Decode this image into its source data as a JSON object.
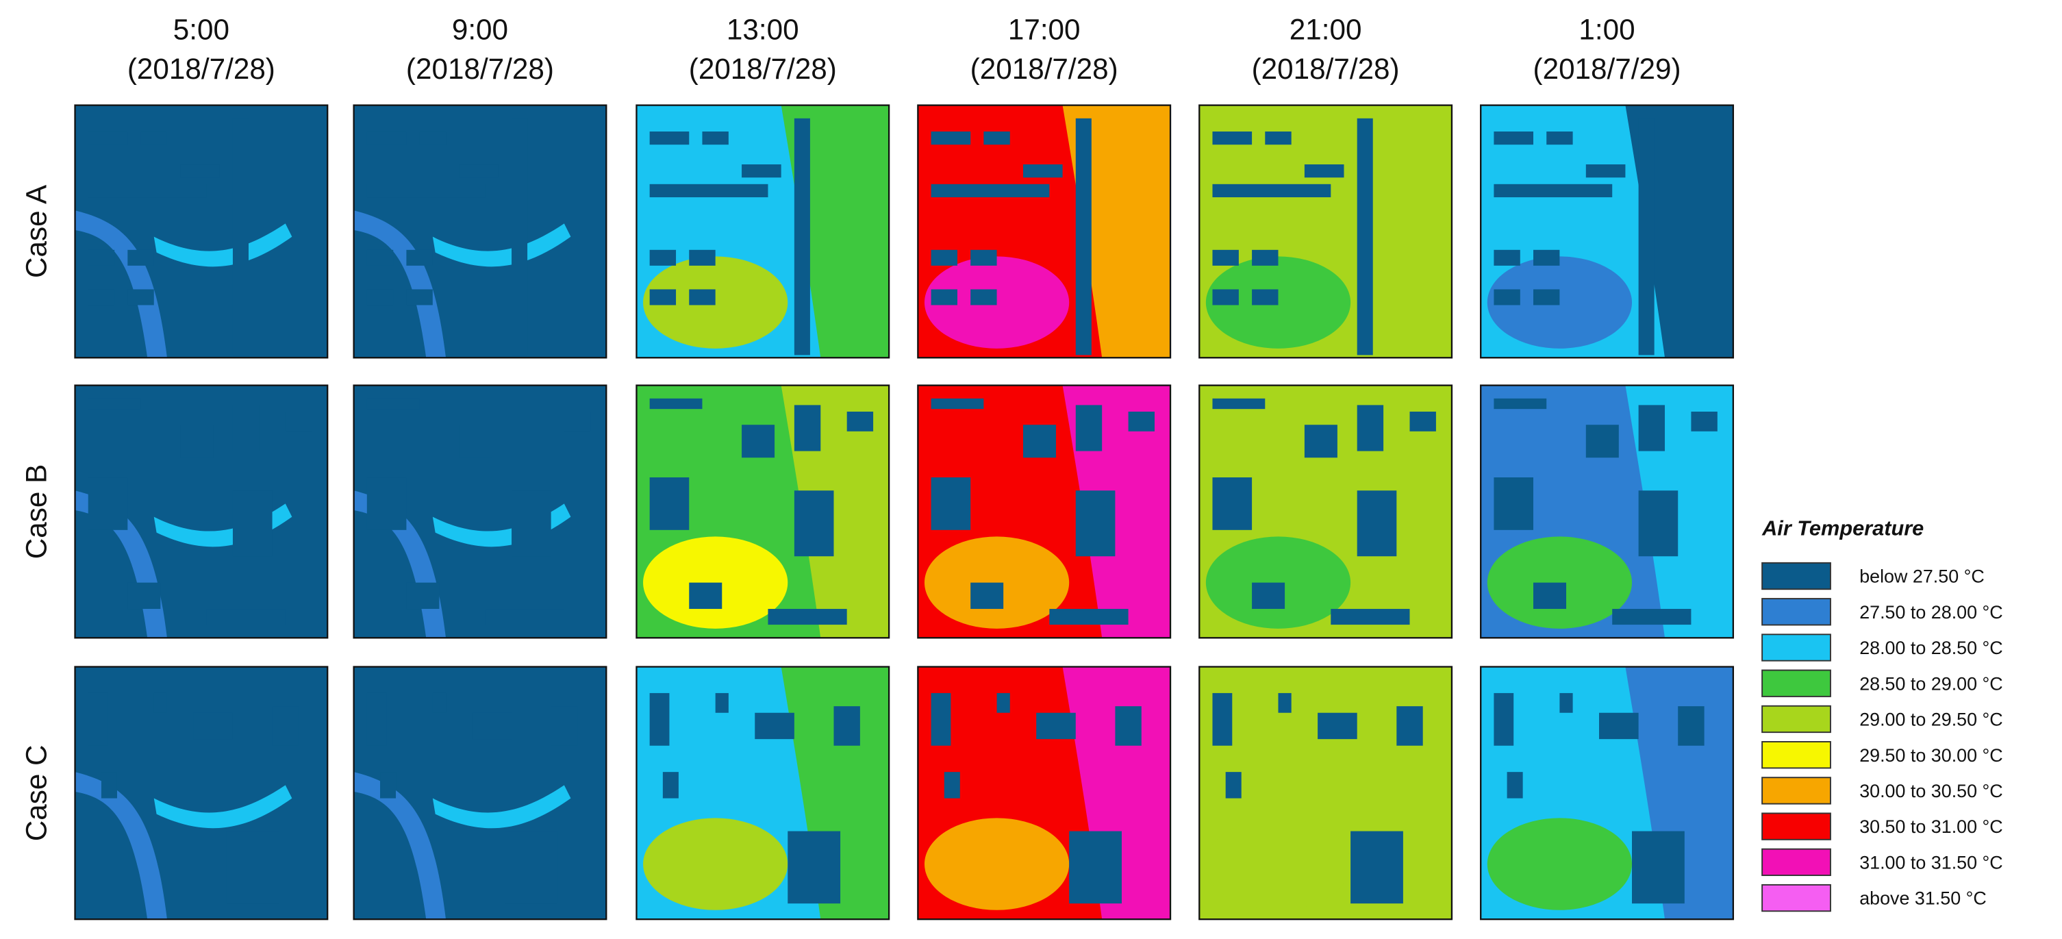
{
  "columns": [
    {
      "time": "5:00",
      "date": "(2018/7/28)"
    },
    {
      "time": "9:00",
      "date": "(2018/7/28)"
    },
    {
      "time": "13:00",
      "date": "(2018/7/28)"
    },
    {
      "time": "17:00",
      "date": "(2018/7/28)"
    },
    {
      "time": "21:00",
      "date": "(2018/7/28)"
    },
    {
      "time": "1:00",
      "date": "(2018/7/29)"
    }
  ],
  "rows": [
    "Case A",
    "Case B",
    "Case C"
  ],
  "legend": {
    "title": "Air Temperature",
    "items": [
      {
        "label": "below 27.50 °C",
        "color": "#0b5b8b"
      },
      {
        "label": "27.50 to 28.00 °C",
        "color": "#2e7fd2"
      },
      {
        "label": "28.00 to 28.50 °C",
        "color": "#1ac4f2"
      },
      {
        "label": "28.50 to 29.00 °C",
        "color": "#3ec83e"
      },
      {
        "label": "29.00 to 29.50 °C",
        "color": "#a8d61c"
      },
      {
        "label": "29.50 to 30.00 °C",
        "color": "#f7f700"
      },
      {
        "label": "30.00 to 30.50 °C",
        "color": "#f7a600"
      },
      {
        "label": "30.50 to 31.00 °C",
        "color": "#f70000"
      },
      {
        "label": "31.00 to 31.50 °C",
        "color": "#f210b6"
      },
      {
        "label": "above 31.50 °C",
        "color": "#f55ef2"
      }
    ]
  }
}
